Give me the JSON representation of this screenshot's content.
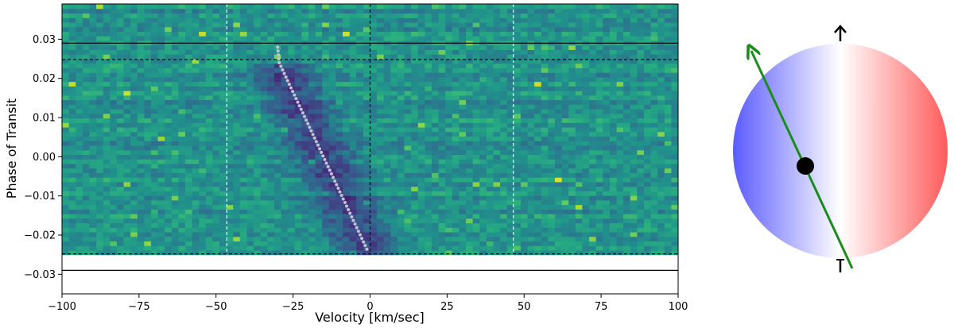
{
  "chart_data": [
    {
      "type": "heatmap",
      "xlabel": "Velocity [km/sec]",
      "ylabel": "Phase of Transit",
      "xlim": [
        -100,
        100
      ],
      "ylim": [
        -0.035,
        0.039
      ],
      "xticks": [
        -100,
        -75,
        -50,
        -25,
        0,
        25,
        50,
        75,
        100
      ],
      "xtick_labels": [
        "−100",
        "−75",
        "−50",
        "−25",
        "0",
        "25",
        "50",
        "75",
        "100"
      ],
      "yticks": [
        0.03,
        0.02,
        0.01,
        0.0,
        -0.01,
        -0.02,
        -0.03
      ],
      "ytick_labels": [
        "0.03",
        "0.02",
        "0.01",
        "0.00",
        "−0.01",
        "−0.02",
        "−0.03"
      ],
      "data_extent": {
        "x": [
          -100,
          100
        ],
        "y": [
          -0.025,
          0.039
        ]
      },
      "colormap": "viridis",
      "shadow_track": [
        {
          "x": -30,
          "y": 0.028
        },
        {
          "x": -29.5,
          "y": 0.024
        },
        {
          "x": -0.5,
          "y": -0.0245
        }
      ],
      "vertical_lines": [
        {
          "x": -46.5,
          "style": "dashed",
          "color": "#ffffff"
        },
        {
          "x": 0,
          "style": "dashed",
          "color": "#000000"
        },
        {
          "x": 46.5,
          "style": "dashed",
          "color": "#ffffff"
        }
      ],
      "horizontal_lines": [
        {
          "y": 0.029,
          "style": "solid",
          "color": "#000000"
        },
        {
          "y": 0.0248,
          "style": "dashed",
          "color": "#000000"
        },
        {
          "y": -0.0248,
          "style": "dashed",
          "color": "#000000"
        },
        {
          "y": -0.029,
          "style": "solid",
          "color": "#000000"
        }
      ]
    },
    {
      "type": "diagram",
      "stellar_disk": {
        "left_color": "#5b5bff",
        "center_color": "#ffffff",
        "right_color": "#ff5b5b"
      },
      "planet_color": "#000000",
      "orbit_color": "#1a8c1a",
      "spin_axis_color": "#000000"
    }
  ]
}
